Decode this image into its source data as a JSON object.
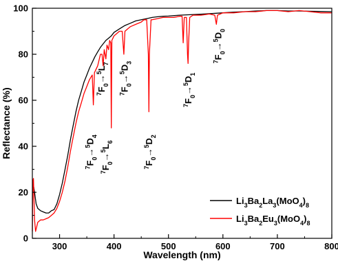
{
  "chart_data": {
    "type": "line",
    "title": "",
    "xlabel": "Wavelength (nm)",
    "ylabel": "Reflectance (%)",
    "xlim": [
      250,
      800
    ],
    "ylim": [
      0,
      100
    ],
    "xticks": [
      300,
      400,
      500,
      600,
      700,
      800
    ],
    "yticks": [
      0,
      20,
      40,
      60,
      80,
      100
    ],
    "grid": false,
    "legend_position": "bottom-right",
    "series": [
      {
        "name": "Li3Ba2La3(MoO4)8",
        "name_parts": [
          [
            "Li",
            ""
          ],
          [
            "3",
            "sub"
          ],
          [
            "Ba",
            ""
          ],
          [
            "2",
            "sub"
          ],
          [
            "La",
            ""
          ],
          [
            "3",
            "sub"
          ],
          [
            "(MoO",
            ""
          ],
          [
            "4",
            "sub"
          ],
          [
            ")",
            ""
          ],
          [
            "8",
            "sub"
          ]
        ],
        "color": "#000000",
        "points": [
          [
            250,
            22
          ],
          [
            252,
            23
          ],
          [
            254,
            20
          ],
          [
            257,
            15
          ],
          [
            260,
            13
          ],
          [
            265,
            12
          ],
          [
            270,
            11.5
          ],
          [
            275,
            11
          ],
          [
            280,
            11
          ],
          [
            285,
            12
          ],
          [
            290,
            12.5
          ],
          [
            295,
            15
          ],
          [
            300,
            19
          ],
          [
            305,
            24
          ],
          [
            310,
            30
          ],
          [
            315,
            36
          ],
          [
            320,
            43
          ],
          [
            325,
            49
          ],
          [
            330,
            55
          ],
          [
            335,
            60
          ],
          [
            340,
            64
          ],
          [
            345,
            68
          ],
          [
            350,
            71
          ],
          [
            355,
            74
          ],
          [
            360,
            76.5
          ],
          [
            365,
            79
          ],
          [
            370,
            81
          ],
          [
            375,
            83
          ],
          [
            380,
            84.5
          ],
          [
            385,
            86
          ],
          [
            390,
            87
          ],
          [
            395,
            88
          ],
          [
            400,
            89.5
          ],
          [
            410,
            91
          ],
          [
            420,
            92.5
          ],
          [
            430,
            93.5
          ],
          [
            440,
            94.5
          ],
          [
            450,
            95
          ],
          [
            460,
            95.5
          ],
          [
            470,
            96
          ],
          [
            480,
            96.3
          ],
          [
            490,
            96.5
          ],
          [
            500,
            96.6
          ],
          [
            520,
            97
          ],
          [
            540,
            97.2
          ],
          [
            560,
            97.4
          ],
          [
            580,
            97.7
          ],
          [
            600,
            98
          ],
          [
            620,
            98.3
          ],
          [
            640,
            98.5
          ],
          [
            660,
            98.8
          ],
          [
            680,
            99
          ],
          [
            700,
            99
          ],
          [
            720,
            98.8
          ],
          [
            740,
            98.8
          ],
          [
            760,
            98.7
          ],
          [
            780,
            98.6
          ],
          [
            800,
            98.5
          ]
        ]
      },
      {
        "name": "Li3Ba2Eu3(MoO4)8",
        "name_parts": [
          [
            "Li",
            ""
          ],
          [
            "3",
            "sub"
          ],
          [
            "Ba",
            ""
          ],
          [
            "2",
            "sub"
          ],
          [
            "Eu",
            ""
          ],
          [
            "3",
            "sub"
          ],
          [
            "(MoO",
            ""
          ],
          [
            "4",
            "sub"
          ],
          [
            ")",
            ""
          ],
          [
            "8",
            "sub"
          ]
        ],
        "color": "#ff0000",
        "points": [
          [
            250,
            3
          ],
          [
            251,
            25
          ],
          [
            252,
            26
          ],
          [
            254,
            8
          ],
          [
            256,
            3
          ],
          [
            260,
            7
          ],
          [
            265,
            8
          ],
          [
            270,
            8
          ],
          [
            275,
            8.5
          ],
          [
            280,
            9
          ],
          [
            285,
            10
          ],
          [
            290,
            11
          ],
          [
            295,
            13
          ],
          [
            300,
            16
          ],
          [
            305,
            20
          ],
          [
            310,
            25
          ],
          [
            315,
            31
          ],
          [
            320,
            38
          ],
          [
            325,
            44
          ],
          [
            330,
            50
          ],
          [
            335,
            55
          ],
          [
            340,
            59
          ],
          [
            345,
            63
          ],
          [
            350,
            66
          ],
          [
            355,
            69
          ],
          [
            360,
            71
          ],
          [
            362,
            58
          ],
          [
            364,
            72
          ],
          [
            370,
            75
          ],
          [
            375,
            80
          ],
          [
            378,
            80
          ],
          [
            380,
            75
          ],
          [
            382,
            82
          ],
          [
            385,
            78
          ],
          [
            387,
            84
          ],
          [
            390,
            82
          ],
          [
            392,
            86
          ],
          [
            394,
            85
          ],
          [
            395,
            48
          ],
          [
            396,
            86
          ],
          [
            400,
            88
          ],
          [
            405,
            89
          ],
          [
            410,
            90
          ],
          [
            415,
            90
          ],
          [
            418,
            80
          ],
          [
            420,
            90
          ],
          [
            425,
            91
          ],
          [
            430,
            92
          ],
          [
            440,
            93
          ],
          [
            450,
            94
          ],
          [
            455,
            95
          ],
          [
            460,
            95
          ],
          [
            463,
            80
          ],
          [
            464,
            55
          ],
          [
            465,
            80
          ],
          [
            468,
            95
          ],
          [
            470,
            95
          ],
          [
            480,
            95.5
          ],
          [
            490,
            96
          ],
          [
            500,
            96
          ],
          [
            510,
            96
          ],
          [
            520,
            96.5
          ],
          [
            525,
            96.5
          ],
          [
            527,
            85
          ],
          [
            529,
            96
          ],
          [
            533,
            96
          ],
          [
            535,
            80
          ],
          [
            536,
            76
          ],
          [
            537,
            85
          ],
          [
            539,
            96
          ],
          [
            545,
            97
          ],
          [
            560,
            97
          ],
          [
            575,
            97.5
          ],
          [
            585,
            97
          ],
          [
            588,
            93
          ],
          [
            590,
            97
          ],
          [
            600,
            98
          ],
          [
            620,
            98
          ],
          [
            640,
            98.5
          ],
          [
            660,
            98.5
          ],
          [
            680,
            99
          ],
          [
            700,
            99
          ],
          [
            720,
            98.5
          ],
          [
            740,
            99
          ],
          [
            760,
            98.5
          ],
          [
            780,
            98
          ],
          [
            800,
            98
          ]
        ]
      }
    ],
    "annotations": [
      {
        "id": "7F0-5D4",
        "parts": [
          [
            "7",
            "sup"
          ],
          [
            "F",
            ""
          ],
          [
            "0",
            "sub"
          ],
          [
            "→",
            ""
          ],
          [
            "5",
            "sup"
          ],
          [
            "D",
            ""
          ],
          [
            "4",
            "sub"
          ]
        ],
        "x": 357,
        "y": 30
      },
      {
        "id": "7F0-5L7",
        "parts": [
          [
            "7",
            "sup"
          ],
          [
            "F",
            ""
          ],
          [
            "0",
            "sub"
          ],
          [
            "→",
            ""
          ],
          [
            "5",
            "sup"
          ],
          [
            "L",
            ""
          ],
          [
            "7",
            "sub"
          ]
        ],
        "x": 378,
        "y": 62
      },
      {
        "id": "7F0-5L6",
        "parts": [
          [
            "7",
            "sup"
          ],
          [
            "F",
            ""
          ],
          [
            "0",
            "sub"
          ],
          [
            "→",
            ""
          ],
          [
            "5",
            "sup"
          ],
          [
            "L",
            ""
          ],
          [
            "6",
            "sub"
          ]
        ],
        "x": 385,
        "y": 28
      },
      {
        "id": "7F0-5D3",
        "parts": [
          [
            "7",
            "sup"
          ],
          [
            "F",
            ""
          ],
          [
            "0",
            "sub"
          ],
          [
            "→",
            ""
          ],
          [
            "5",
            "sup"
          ],
          [
            "D",
            ""
          ],
          [
            "3",
            "sub"
          ]
        ],
        "x": 420,
        "y": 62
      },
      {
        "id": "7F0-5D2",
        "parts": [
          [
            "7",
            "sup"
          ],
          [
            "F",
            ""
          ],
          [
            "0",
            "sub"
          ],
          [
            "→",
            ""
          ],
          [
            "5",
            "sup"
          ],
          [
            "D",
            ""
          ],
          [
            "2",
            "sub"
          ]
        ],
        "x": 465,
        "y": 30
      },
      {
        "id": "7F0-5D1",
        "parts": [
          [
            "7",
            "sup"
          ],
          [
            "F",
            ""
          ],
          [
            "0",
            "sub"
          ],
          [
            "→",
            ""
          ],
          [
            "5",
            "sup"
          ],
          [
            "D",
            ""
          ],
          [
            "1",
            "sub"
          ]
        ],
        "x": 537,
        "y": 57
      },
      {
        "id": "7F0-5D0",
        "parts": [
          [
            "7",
            "sup"
          ],
          [
            "F",
            ""
          ],
          [
            "0",
            "sub"
          ],
          [
            "→",
            ""
          ],
          [
            "5",
            "sup"
          ],
          [
            "D",
            ""
          ],
          [
            "0",
            "sub"
          ]
        ],
        "x": 592,
        "y": 76
      }
    ]
  }
}
